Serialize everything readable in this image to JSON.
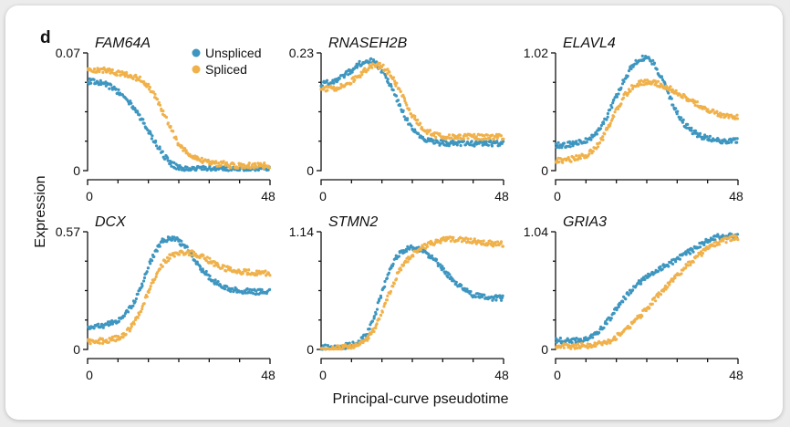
{
  "figure": {
    "label": "d",
    "xlabel": "Principal-curve pseudotime",
    "ylabel": "Expression"
  },
  "colors": {
    "unspliced": "#3d96c0",
    "spliced": "#f0b14a"
  },
  "legend": {
    "placement": "top-left panel, upper-right",
    "items": [
      "Unspliced",
      "Spliced"
    ]
  },
  "chart_data": [
    {
      "type": "scatter",
      "title": "FAM64A",
      "xlim": [
        0,
        48
      ],
      "ylim": [
        0,
        0.07
      ],
      "x_tick_labels": [
        "0",
        "48"
      ],
      "y_tick_labels": [
        "0",
        "0.07"
      ],
      "series": [
        {
          "name": "Unspliced",
          "x": [
            0,
            2,
            4,
            6,
            8,
            10,
            12,
            14,
            16,
            18,
            20,
            22,
            24,
            26,
            28,
            30,
            32,
            34,
            36,
            38,
            40,
            42,
            44,
            46,
            48
          ],
          "y": [
            0.053,
            0.053,
            0.052,
            0.05,
            0.047,
            0.043,
            0.038,
            0.031,
            0.024,
            0.016,
            0.009,
            0.004,
            0.002,
            0.001,
            0.001,
            0.001,
            0.001,
            0.001,
            0.001,
            0.001,
            0.001,
            0.001,
            0.001,
            0.001,
            0.001
          ]
        },
        {
          "name": "Spliced",
          "x": [
            0,
            2,
            4,
            6,
            8,
            10,
            12,
            14,
            16,
            18,
            20,
            22,
            24,
            26,
            28,
            30,
            32,
            34,
            36,
            38,
            40,
            42,
            44,
            46,
            48
          ],
          "y": [
            0.06,
            0.06,
            0.06,
            0.059,
            0.058,
            0.057,
            0.056,
            0.054,
            0.05,
            0.043,
            0.034,
            0.024,
            0.016,
            0.011,
            0.008,
            0.006,
            0.005,
            0.004,
            0.004,
            0.003,
            0.003,
            0.003,
            0.003,
            0.003,
            0.003
          ]
        }
      ]
    },
    {
      "type": "scatter",
      "title": "RNASEH2B",
      "xlim": [
        0,
        48
      ],
      "ylim": [
        0,
        0.23
      ],
      "x_tick_labels": [
        "0",
        "48"
      ],
      "y_tick_labels": [
        "0",
        "0.23"
      ],
      "series": [
        {
          "name": "Unspliced",
          "x": [
            0,
            2,
            4,
            6,
            8,
            10,
            12,
            14,
            16,
            18,
            20,
            22,
            24,
            26,
            28,
            30,
            32,
            34,
            36,
            38,
            40,
            42,
            44,
            46,
            48
          ],
          "y": [
            0.17,
            0.172,
            0.178,
            0.186,
            0.196,
            0.208,
            0.216,
            0.212,
            0.196,
            0.17,
            0.138,
            0.106,
            0.082,
            0.068,
            0.06,
            0.056,
            0.054,
            0.053,
            0.053,
            0.053,
            0.053,
            0.053,
            0.053,
            0.053,
            0.053
          ]
        },
        {
          "name": "Spliced",
          "x": [
            0,
            2,
            4,
            6,
            8,
            10,
            12,
            14,
            16,
            18,
            20,
            22,
            24,
            26,
            28,
            30,
            32,
            34,
            36,
            38,
            40,
            42,
            44,
            46,
            48
          ],
          "y": [
            0.16,
            0.16,
            0.162,
            0.166,
            0.174,
            0.186,
            0.198,
            0.206,
            0.204,
            0.19,
            0.166,
            0.136,
            0.108,
            0.088,
            0.076,
            0.07,
            0.067,
            0.066,
            0.066,
            0.066,
            0.066,
            0.066,
            0.066,
            0.066,
            0.066
          ]
        }
      ]
    },
    {
      "type": "scatter",
      "title": "ELAVL4",
      "xlim": [
        0,
        48
      ],
      "ylim": [
        0,
        1.02
      ],
      "x_tick_labels": [
        "0",
        "48"
      ],
      "y_tick_labels": [
        "0",
        "1.02"
      ],
      "series": [
        {
          "name": "Unspliced",
          "x": [
            0,
            2,
            4,
            6,
            8,
            10,
            12,
            14,
            16,
            18,
            20,
            22,
            24,
            26,
            28,
            30,
            32,
            34,
            36,
            38,
            40,
            42,
            44,
            46,
            48
          ],
          "y": [
            0.22,
            0.22,
            0.23,
            0.24,
            0.26,
            0.3,
            0.38,
            0.5,
            0.64,
            0.78,
            0.9,
            0.97,
            0.98,
            0.92,
            0.8,
            0.64,
            0.5,
            0.4,
            0.34,
            0.3,
            0.28,
            0.27,
            0.26,
            0.26,
            0.26
          ]
        },
        {
          "name": "Spliced",
          "x": [
            0,
            2,
            4,
            6,
            8,
            10,
            12,
            14,
            16,
            18,
            20,
            22,
            24,
            26,
            28,
            30,
            32,
            34,
            36,
            38,
            40,
            42,
            44,
            46,
            48
          ],
          "y": [
            0.09,
            0.09,
            0.1,
            0.11,
            0.13,
            0.18,
            0.26,
            0.38,
            0.52,
            0.64,
            0.72,
            0.76,
            0.77,
            0.76,
            0.74,
            0.71,
            0.68,
            0.64,
            0.6,
            0.56,
            0.53,
            0.5,
            0.48,
            0.47,
            0.47
          ]
        }
      ]
    },
    {
      "type": "scatter",
      "title": "DCX",
      "xlim": [
        0,
        48
      ],
      "ylim": [
        0,
        0.57
      ],
      "x_tick_labels": [
        "0",
        "48"
      ],
      "y_tick_labels": [
        "0",
        "0.57"
      ],
      "series": [
        {
          "name": "Unspliced",
          "x": [
            0,
            2,
            4,
            6,
            8,
            10,
            12,
            14,
            16,
            18,
            20,
            22,
            24,
            26,
            28,
            30,
            32,
            34,
            36,
            38,
            40,
            42,
            44,
            46,
            48
          ],
          "y": [
            0.11,
            0.112,
            0.116,
            0.124,
            0.14,
            0.17,
            0.22,
            0.3,
            0.4,
            0.48,
            0.53,
            0.54,
            0.525,
            0.49,
            0.44,
            0.39,
            0.35,
            0.32,
            0.3,
            0.29,
            0.285,
            0.282,
            0.28,
            0.28,
            0.28
          ]
        },
        {
          "name": "Spliced",
          "x": [
            0,
            2,
            4,
            6,
            8,
            10,
            12,
            14,
            16,
            18,
            20,
            22,
            24,
            26,
            28,
            30,
            32,
            34,
            36,
            38,
            40,
            42,
            44,
            46,
            48
          ],
          "y": [
            0.04,
            0.04,
            0.042,
            0.046,
            0.055,
            0.075,
            0.12,
            0.19,
            0.28,
            0.36,
            0.42,
            0.455,
            0.47,
            0.472,
            0.465,
            0.45,
            0.43,
            0.41,
            0.395,
            0.385,
            0.378,
            0.374,
            0.372,
            0.37,
            0.37
          ]
        }
      ]
    },
    {
      "type": "scatter",
      "title": "STMN2",
      "xlim": [
        0,
        48
      ],
      "ylim": [
        0,
        1.14
      ],
      "x_tick_labels": [
        "0",
        "48"
      ],
      "y_tick_labels": [
        "0",
        "1.14"
      ],
      "series": [
        {
          "name": "Unspliced",
          "x": [
            0,
            2,
            4,
            6,
            8,
            10,
            12,
            14,
            16,
            18,
            20,
            22,
            24,
            26,
            28,
            30,
            32,
            34,
            36,
            38,
            40,
            42,
            44,
            46,
            48
          ],
          "y": [
            0.02,
            0.02,
            0.02,
            0.03,
            0.04,
            0.07,
            0.15,
            0.32,
            0.55,
            0.76,
            0.9,
            0.97,
            0.99,
            0.97,
            0.92,
            0.86,
            0.78,
            0.7,
            0.63,
            0.57,
            0.53,
            0.51,
            0.5,
            0.5,
            0.5
          ]
        },
        {
          "name": "Spliced",
          "x": [
            0,
            2,
            4,
            6,
            8,
            10,
            12,
            14,
            16,
            18,
            20,
            22,
            24,
            26,
            28,
            30,
            32,
            34,
            36,
            38,
            40,
            42,
            44,
            46,
            48
          ],
          "y": [
            0.01,
            0.01,
            0.01,
            0.02,
            0.03,
            0.05,
            0.1,
            0.2,
            0.36,
            0.55,
            0.72,
            0.84,
            0.92,
            0.97,
            1.01,
            1.04,
            1.06,
            1.07,
            1.07,
            1.06,
            1.05,
            1.04,
            1.03,
            1.02,
            1.02
          ]
        }
      ]
    },
    {
      "type": "scatter",
      "title": "GRIA3",
      "xlim": [
        0,
        48
      ],
      "ylim": [
        0,
        1.04
      ],
      "x_tick_labels": [
        "0",
        "48"
      ],
      "y_tick_labels": [
        "0",
        "1.04"
      ],
      "series": [
        {
          "name": "Unspliced",
          "x": [
            0,
            2,
            4,
            6,
            8,
            10,
            12,
            14,
            16,
            18,
            20,
            22,
            24,
            26,
            28,
            30,
            32,
            34,
            36,
            38,
            40,
            42,
            44,
            46,
            48
          ],
          "y": [
            0.08,
            0.08,
            0.08,
            0.08,
            0.09,
            0.12,
            0.18,
            0.26,
            0.36,
            0.45,
            0.53,
            0.59,
            0.64,
            0.68,
            0.72,
            0.76,
            0.8,
            0.84,
            0.88,
            0.92,
            0.96,
            0.99,
            1.0,
            1.0,
            1.0
          ]
        },
        {
          "name": "Spliced",
          "x": [
            0,
            2,
            4,
            6,
            8,
            10,
            12,
            14,
            16,
            18,
            20,
            22,
            24,
            26,
            28,
            30,
            32,
            34,
            36,
            38,
            40,
            42,
            44,
            46,
            48
          ],
          "y": [
            0.03,
            0.03,
            0.03,
            0.03,
            0.03,
            0.04,
            0.05,
            0.07,
            0.11,
            0.16,
            0.22,
            0.29,
            0.36,
            0.44,
            0.51,
            0.58,
            0.65,
            0.72,
            0.78,
            0.84,
            0.89,
            0.93,
            0.96,
            0.98,
            0.99
          ]
        }
      ]
    }
  ]
}
